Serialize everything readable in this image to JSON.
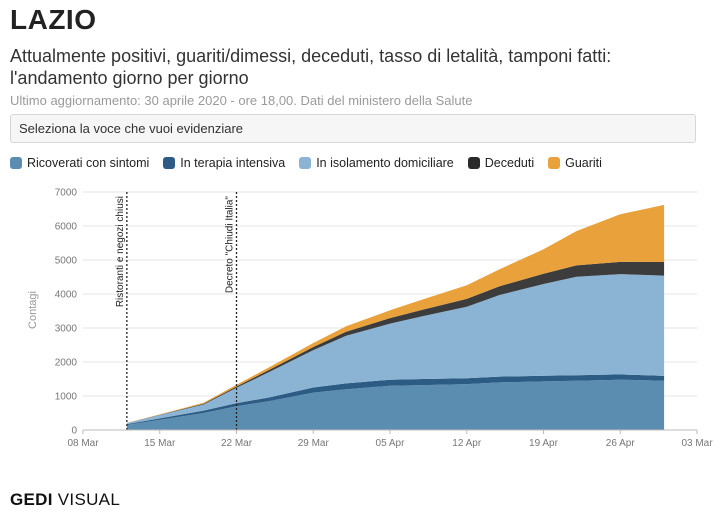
{
  "header": {
    "title": "LAZIO",
    "subtitle": "Attualmente positivi, guariti/dimessi, deceduti, tasso di letalità, tamponi fatti: l'andamento giorno per giorno",
    "updated": "Ultimo aggiornamento: 30 aprile 2020 - ore 18,00. Dati del ministero della Salute"
  },
  "selector": {
    "label": "Seleziona la voce che vuoi evidenziare"
  },
  "brand": {
    "part1": "GEDI",
    "part2": "VISUAL"
  },
  "colors": {
    "ricoverati": "#5b8db1",
    "terapia": "#2c5b84",
    "isolamento": "#8bb3d3",
    "deceduti": "#3c3c3c",
    "guariti": "#e9a23b",
    "grid": "#e6e6e6",
    "axis": "#bbbbbb"
  },
  "chart_data": {
    "type": "area",
    "stacked": true,
    "title": "",
    "xlabel": "",
    "ylabel": "Contagi",
    "ylim": [
      0,
      7000
    ],
    "yticks": [
      0,
      1000,
      2000,
      3000,
      4000,
      5000,
      6000,
      7000
    ],
    "xlim": [
      "2020-03-08",
      "2020-05-03"
    ],
    "xticks": [
      {
        "date": "2020-03-08",
        "label": "08 Mar"
      },
      {
        "date": "2020-03-15",
        "label": "15 Mar"
      },
      {
        "date": "2020-03-22",
        "label": "22 Mar"
      },
      {
        "date": "2020-03-29",
        "label": "29 Mar"
      },
      {
        "date": "2020-04-05",
        "label": "05 Apr"
      },
      {
        "date": "2020-04-12",
        "label": "12 Apr"
      },
      {
        "date": "2020-04-19",
        "label": "19 Apr"
      },
      {
        "date": "2020-04-26",
        "label": "26 Apr"
      },
      {
        "date": "2020-05-03",
        "label": "03 Mar"
      }
    ],
    "grid": true,
    "legend_position": "top",
    "x": [
      "2020-03-12",
      "2020-03-15",
      "2020-03-19",
      "2020-03-22",
      "2020-03-25",
      "2020-03-29",
      "2020-04-01",
      "2020-04-05",
      "2020-04-08",
      "2020-04-12",
      "2020-04-15",
      "2020-04-19",
      "2020-04-22",
      "2020-04-26",
      "2020-04-30"
    ],
    "series": [
      {
        "name": "Ricoverati con sintomi",
        "key": "ricoverati",
        "values": [
          150,
          300,
          500,
          700,
          850,
          1100,
          1200,
          1300,
          1320,
          1350,
          1400,
          1430,
          1450,
          1480,
          1450
        ]
      },
      {
        "name": "In terapia intensiva",
        "key": "terapia",
        "values": [
          20,
          40,
          70,
          90,
          110,
          150,
          170,
          180,
          180,
          175,
          170,
          165,
          160,
          155,
          140
        ]
      },
      {
        "name": "In isolamento domiciliare",
        "key": "isolamento",
        "values": [
          30,
          100,
          180,
          450,
          750,
          1100,
          1400,
          1650,
          1850,
          2100,
          2400,
          2700,
          2900,
          2950,
          2950
        ]
      },
      {
        "name": "Deceduti",
        "key": "deceduti",
        "values": [
          5,
          10,
          20,
          40,
          60,
          90,
          120,
          160,
          190,
          230,
          260,
          300,
          330,
          360,
          400
        ]
      },
      {
        "name": "Guariti",
        "key": "guariti",
        "values": [
          5,
          10,
          30,
          50,
          80,
          120,
          160,
          230,
          300,
          400,
          500,
          720,
          1010,
          1400,
          1680
        ]
      }
    ],
    "annotations": [
      {
        "date": "2020-03-12",
        "label": "Ristoranti e negozi chiusi"
      },
      {
        "date": "2020-03-22",
        "label": "Decreto \"Chiudi Italia\""
      }
    ]
  }
}
